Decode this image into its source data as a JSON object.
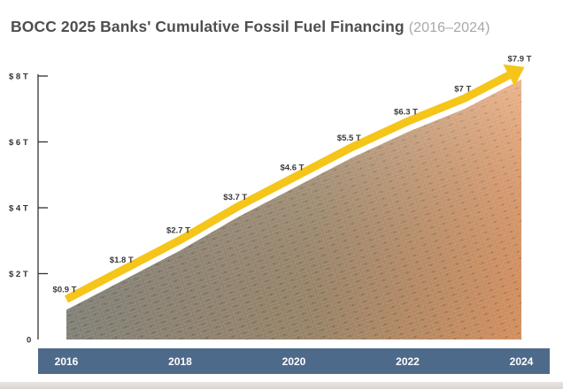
{
  "title": {
    "main": "BOCC 2025 Banks' Cumulative Fossil Fuel Financing",
    "period": "(2016–2024)"
  },
  "colors": {
    "arrow": "#f5c51a",
    "xaxis_band": "#4e6a8a",
    "fill_start": "#8c8a80",
    "fill_end": "#e69a64"
  },
  "chart_data": {
    "type": "area",
    "title": "BOCC 2025 Banks' Cumulative Fossil Fuel Financing (2016–2024)",
    "xlabel": "",
    "ylabel": "",
    "x": [
      2016,
      2017,
      2018,
      2019,
      2020,
      2021,
      2022,
      2023,
      2024
    ],
    "values": [
      0.9,
      1.8,
      2.7,
      3.7,
      4.6,
      5.5,
      6.3,
      7,
      7.9
    ],
    "data_labels": [
      "$0.9 T",
      "$1.8 T",
      "$2.7 T",
      "$3.7 T",
      "$4.6 T",
      "$5.5 T",
      "$6.3 T",
      "$7 T",
      "$7.9 T"
    ],
    "unit": "Trillion USD",
    "ylim": [
      0,
      8
    ],
    "yticks": [
      0,
      2,
      4,
      6,
      8
    ],
    "ytick_labels": [
      "0",
      "$ 2 T",
      "$ 4 T",
      "$ 6 T",
      "$ 8 T"
    ],
    "xtick_labels": [
      "2016",
      "2018",
      "2020",
      "2022",
      "2024"
    ],
    "xticks": [
      2016,
      2018,
      2020,
      2022,
      2024
    ],
    "grid": false,
    "legend": "none",
    "trend_arrow": true
  }
}
